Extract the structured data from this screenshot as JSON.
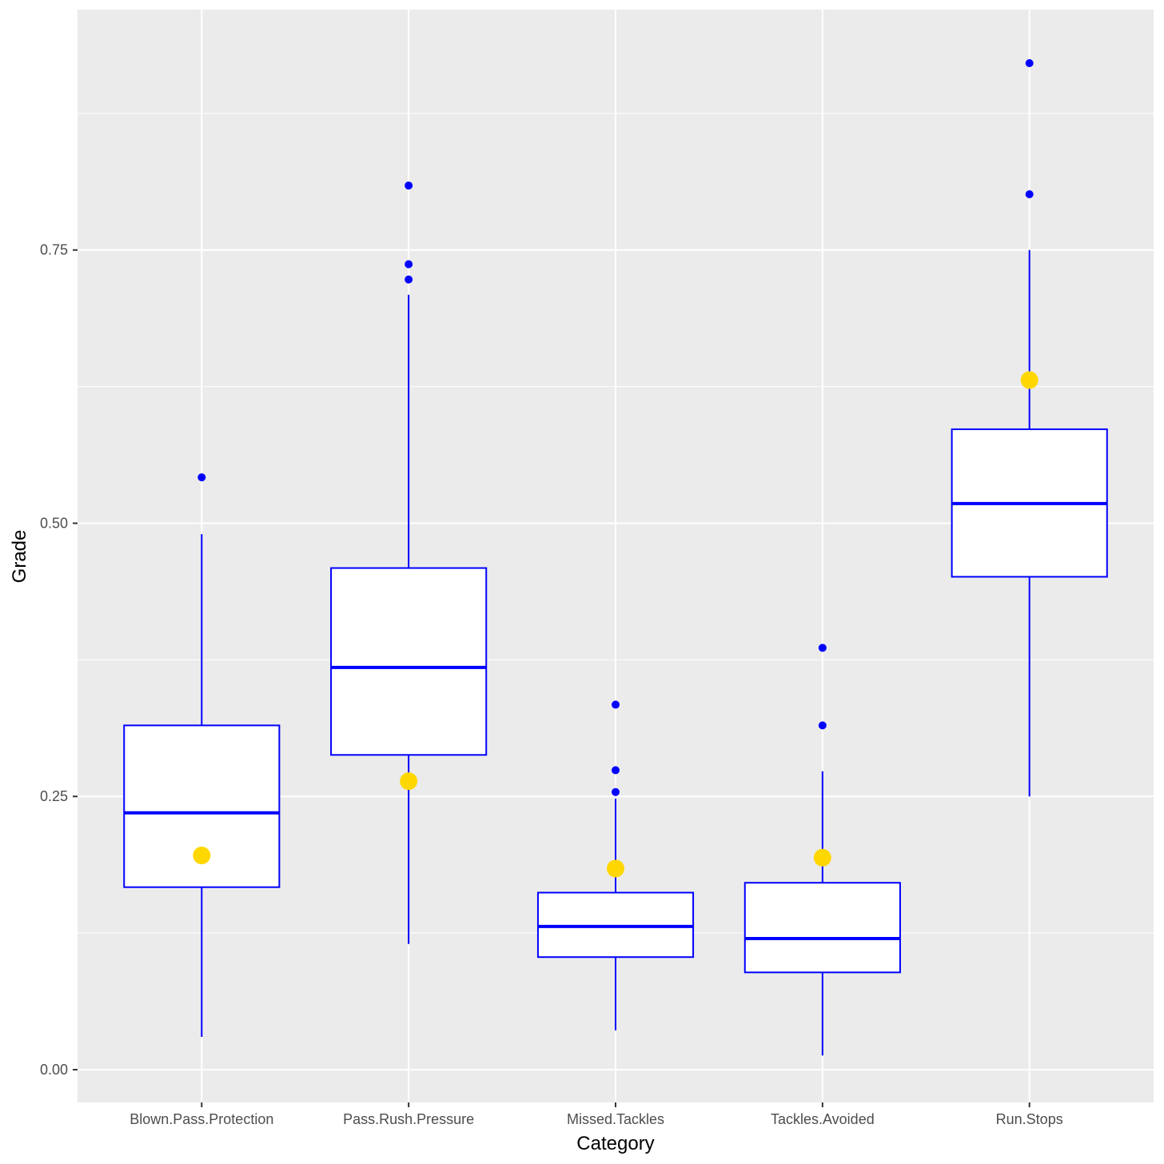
{
  "chart_data": {
    "type": "boxplot",
    "title": "",
    "xlabel": "Category",
    "ylabel": "Grade",
    "ylim": [
      -0.03,
      0.97
    ],
    "yticks": [
      0.0,
      0.25,
      0.5,
      0.75
    ],
    "ytick_labels": [
      "0.00",
      "0.25",
      "0.50",
      "0.75"
    ],
    "grid": true,
    "colors": {
      "panel": "#EBEBEB",
      "grid": "#FFFFFF",
      "box_stroke": "#0000FF",
      "box_fill": "#FFFFFF",
      "outlier": "#0000FF",
      "highlight": "#FFD700",
      "tick": "#333333"
    },
    "categories": [
      "Blown.Pass.Protection",
      "Pass.Rush.Pressure",
      "Missed.Tackles",
      "Tackles.Avoided",
      "Run.Stops"
    ],
    "boxes": [
      {
        "category": "Blown.Pass.Protection",
        "whisker_low": 0.03,
        "q1": 0.167,
        "median": 0.235,
        "q3": 0.315,
        "whisker_high": 0.49,
        "outliers": [
          0.542
        ],
        "highlight": 0.196
      },
      {
        "category": "Pass.Rush.Pressure",
        "whisker_low": 0.115,
        "q1": 0.288,
        "median": 0.368,
        "q3": 0.459,
        "whisker_high": 0.709,
        "outliers": [
          0.723,
          0.737,
          0.809
        ],
        "highlight": 0.264
      },
      {
        "category": "Missed.Tackles",
        "whisker_low": 0.036,
        "q1": 0.103,
        "median": 0.131,
        "q3": 0.162,
        "whisker_high": 0.248,
        "outliers": [
          0.254,
          0.274,
          0.334
        ],
        "highlight": 0.184
      },
      {
        "category": "Tackles.Avoided",
        "whisker_low": 0.013,
        "q1": 0.089,
        "median": 0.12,
        "q3": 0.171,
        "whisker_high": 0.273,
        "outliers": [
          0.315,
          0.386
        ],
        "highlight": 0.194
      },
      {
        "category": "Run.Stops",
        "whisker_low": 0.25,
        "q1": 0.451,
        "median": 0.518,
        "q3": 0.586,
        "whisker_high": 0.75,
        "outliers": [
          0.801,
          0.921
        ],
        "highlight": 0.631
      }
    ]
  }
}
